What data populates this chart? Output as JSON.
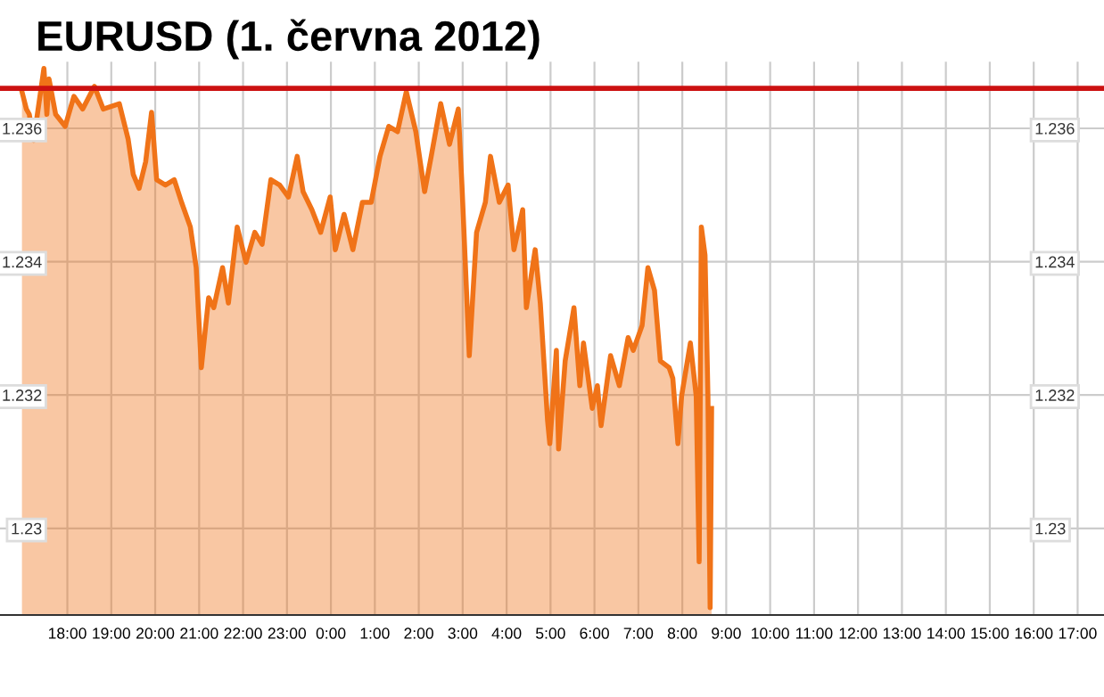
{
  "chart_data": {
    "type": "area",
    "title": "EURUSD (1. června 2012)",
    "series": [
      {
        "color": "#f07318",
        "x": [
          "2012-05-31T16:58",
          "2012-05-31T17:04",
          "2012-05-31T17:08",
          "2012-05-31T17:14",
          "2012-05-31T17:28",
          "2012-05-31T17:32",
          "2012-05-31T17:35",
          "2012-05-31T17:44",
          "2012-05-31T17:57",
          "2012-05-31T18:09",
          "2012-05-31T18:21",
          "2012-05-31T18:37",
          "2012-05-31T18:49",
          "2012-05-31T19:11",
          "2012-05-31T19:23",
          "2012-05-31T19:30",
          "2012-05-31T19:38",
          "2012-05-31T19:47",
          "2012-05-31T19:55",
          "2012-05-31T20:02",
          "2012-05-31T20:14",
          "2012-05-31T20:26",
          "2012-05-31T20:36",
          "2012-05-31T20:48",
          "2012-05-31T20:56",
          "2012-05-31T21:03",
          "2012-05-31T21:13",
          "2012-05-31T21:20",
          "2012-05-31T21:32",
          "2012-05-31T21:40",
          "2012-05-31T21:52",
          "2012-05-31T22:04",
          "2012-05-31T22:16",
          "2012-05-31T22:26",
          "2012-05-31T22:38",
          "2012-05-31T22:50",
          "2012-05-31T23:02",
          "2012-05-31T23:14",
          "2012-05-31T23:22",
          "2012-05-31T23:34",
          "2012-05-31T23:46",
          "2012-05-31T23:59",
          "2012-06-01T00:06",
          "2012-06-01T00:18",
          "2012-06-01T00:30",
          "2012-06-01T00:43",
          "2012-06-01T00:55",
          "2012-06-01T01:07",
          "2012-06-01T01:19",
          "2012-06-01T01:31",
          "2012-06-01T01:43",
          "2012-06-01T01:56",
          "2012-06-01T02:08",
          "2012-06-01T02:17",
          "2012-06-01T02:30",
          "2012-06-01T02:42",
          "2012-06-01T02:54",
          "2012-06-01T02:59",
          "2012-06-01T03:09",
          "2012-06-01T03:19",
          "2012-06-01T03:31",
          "2012-06-01T03:38",
          "2012-06-01T03:50",
          "2012-06-01T04:02",
          "2012-06-01T04:10",
          "2012-06-01T04:22",
          "2012-06-01T04:27",
          "2012-06-01T04:39",
          "2012-06-01T04:46",
          "2012-06-01T04:56",
          "2012-06-01T04:59",
          "2012-06-01T05:08",
          "2012-06-01T05:11",
          "2012-06-01T05:20",
          "2012-06-01T05:32",
          "2012-06-01T05:40",
          "2012-06-01T05:45",
          "2012-06-01T05:57",
          "2012-06-01T06:04",
          "2012-06-01T06:09",
          "2012-06-01T06:22",
          "2012-06-01T06:34",
          "2012-06-01T06:46",
          "2012-06-01T06:53",
          "2012-06-01T07:05",
          "2012-06-01T07:13",
          "2012-06-01T07:22",
          "2012-06-01T07:30",
          "2012-06-01T07:42",
          "2012-06-01T07:47",
          "2012-06-01T07:54",
          "2012-06-01T07:59",
          "2012-06-01T08:11",
          "2012-06-01T08:19",
          "2012-06-01T08:23",
          "2012-06-01T08:26",
          "2012-06-01T08:31",
          "2012-06-01T08:35",
          "2012-06-01T08:38",
          "2012-06-01T08:40"
        ],
        "values": [
          1.23655,
          1.23629,
          1.23621,
          1.23582,
          1.2369,
          1.23621,
          1.23674,
          1.23621,
          1.23603,
          1.23648,
          1.23629,
          1.23663,
          1.23629,
          1.23637,
          1.23584,
          1.23531,
          1.2351,
          1.2355,
          1.23624,
          1.23523,
          1.23515,
          1.23523,
          1.23489,
          1.23452,
          1.23391,
          1.23241,
          1.23346,
          1.23331,
          1.23391,
          1.23338,
          1.23452,
          1.23399,
          1.23444,
          1.23426,
          1.23523,
          1.23515,
          1.23497,
          1.23558,
          1.23505,
          1.23478,
          1.23444,
          1.23497,
          1.23418,
          1.23471,
          1.23418,
          1.23489,
          1.23489,
          1.23558,
          1.23603,
          1.23595,
          1.23655,
          1.23595,
          1.23505,
          1.23558,
          1.23637,
          1.23576,
          1.23629,
          1.23515,
          1.23259,
          1.23444,
          1.23489,
          1.23558,
          1.23489,
          1.23515,
          1.23418,
          1.23478,
          1.23331,
          1.23418,
          1.23338,
          1.23161,
          1.23127,
          1.23267,
          1.23119,
          1.23251,
          1.23331,
          1.23214,
          1.23278,
          1.2318,
          1.23214,
          1.23154,
          1.23259,
          1.23214,
          1.23286,
          1.23267,
          1.23304,
          1.23391,
          1.23357,
          1.23251,
          1.23241,
          1.23225,
          1.23127,
          1.23198,
          1.23278,
          1.23198,
          1.2295,
          1.23452,
          1.2341,
          1.23198,
          1.22881,
          1.2318
        ]
      }
    ],
    "xlim": [
      "2012-05-31T16:28",
      "2012-06-01T17:36"
    ],
    "xticks": [
      {
        "value": "2012-05-31T18:00",
        "label": "18:00"
      },
      {
        "value": "2012-05-31T19:00",
        "label": "19:00"
      },
      {
        "value": "2012-05-31T20:00",
        "label": "20:00"
      },
      {
        "value": "2012-05-31T21:00",
        "label": "21:00"
      },
      {
        "value": "2012-05-31T22:00",
        "label": "22:00"
      },
      {
        "value": "2012-05-31T23:00",
        "label": "23:00"
      },
      {
        "value": "2012-06-01T00:00",
        "label": "0:00"
      },
      {
        "value": "2012-06-01T01:00",
        "label": "1:00"
      },
      {
        "value": "2012-06-01T02:00",
        "label": "2:00"
      },
      {
        "value": "2012-06-01T03:00",
        "label": "3:00"
      },
      {
        "value": "2012-06-01T04:00",
        "label": "4:00"
      },
      {
        "value": "2012-06-01T05:00",
        "label": "5:00"
      },
      {
        "value": "2012-06-01T06:00",
        "label": "6:00"
      },
      {
        "value": "2012-06-01T07:00",
        "label": "7:00"
      },
      {
        "value": "2012-06-01T08:00",
        "label": "8:00"
      },
      {
        "value": "2012-06-01T09:00",
        "label": "9:00"
      },
      {
        "value": "2012-06-01T10:00",
        "label": "10:00"
      },
      {
        "value": "2012-06-01T11:00",
        "label": "11:00"
      },
      {
        "value": "2012-06-01T12:00",
        "label": "12:00"
      },
      {
        "value": "2012-06-01T13:00",
        "label": "13:00"
      },
      {
        "value": "2012-06-01T14:00",
        "label": "14:00"
      },
      {
        "value": "2012-06-01T15:00",
        "label": "15:00"
      },
      {
        "value": "2012-06-01T16:00",
        "label": "16:00"
      },
      {
        "value": "2012-06-01T17:00",
        "label": "17:00"
      }
    ],
    "ylim": [
      1.2287,
      1.237
    ],
    "yticks": [
      {
        "value": 1.23,
        "label": "1.23"
      },
      {
        "value": 1.232,
        "label": "1.232"
      },
      {
        "value": 1.234,
        "label": "1.234"
      },
      {
        "value": 1.236,
        "label": "1.236"
      }
    ],
    "y2lim": [
      1.2287,
      1.237
    ],
    "y2ticks": [
      {
        "value": 1.23,
        "label": "1.23"
      },
      {
        "value": 1.232,
        "label": "1.232"
      },
      {
        "value": 1.234,
        "label": "1.234"
      },
      {
        "value": 1.236,
        "label": "1.236"
      }
    ],
    "ref_lines": [
      {
        "axis": "y",
        "value": 1.2366,
        "color": "#cc1111"
      }
    ],
    "grid": true
  }
}
